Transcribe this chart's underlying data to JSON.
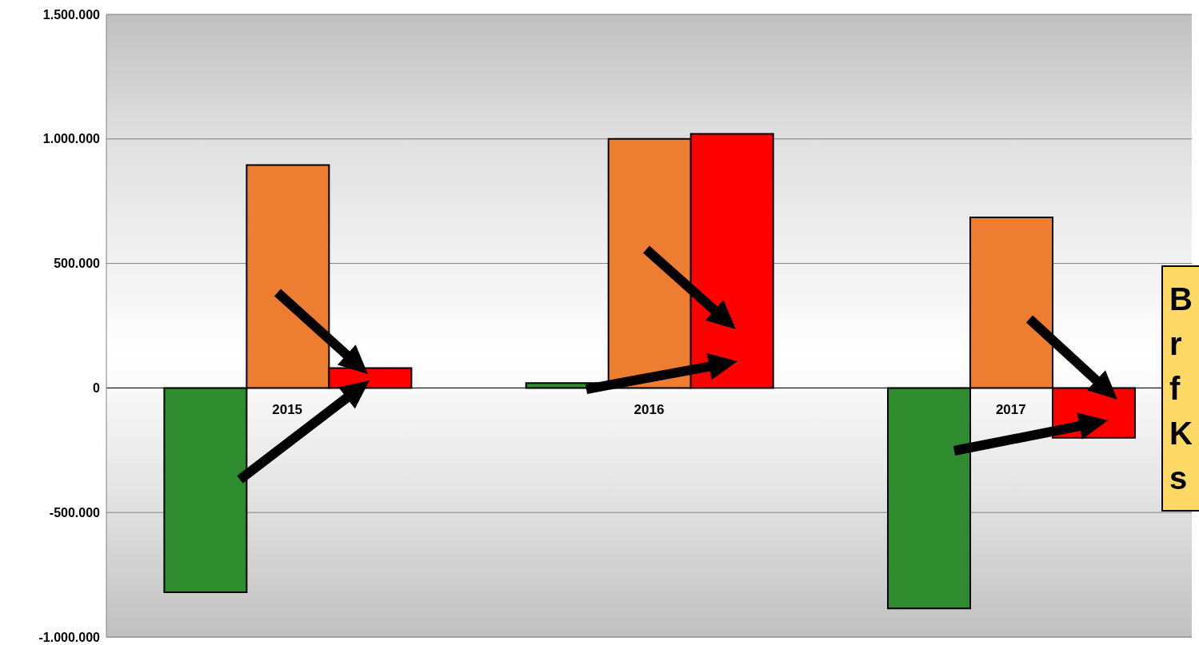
{
  "chart_data": {
    "type": "bar",
    "categories": [
      "2015",
      "2016",
      "2017"
    ],
    "series": [
      {
        "color": "#2e8b2e",
        "values": [
          -820000,
          20000,
          -885000
        ]
      },
      {
        "color": "#ed7d31",
        "values": [
          895000,
          1000000,
          685000
        ]
      },
      {
        "color": "#ff0000",
        "values": [
          80000,
          1020000,
          -200000
        ]
      }
    ],
    "ylim": [
      -1000000,
      1500000
    ],
    "yticks": [
      {
        "value": -1000000,
        "label": "-1.000.000"
      },
      {
        "value": -500000,
        "label": "-500.000"
      },
      {
        "value": 0,
        "label": "0"
      },
      {
        "value": 500000,
        "label": "500.000"
      },
      {
        "value": 1000000,
        "label": "1.000.000"
      },
      {
        "value": 1500000,
        "label": "1.500.000"
      }
    ],
    "grid": "y",
    "legend": false,
    "annotations": [
      "B\nr\nf\nK\ns"
    ]
  }
}
